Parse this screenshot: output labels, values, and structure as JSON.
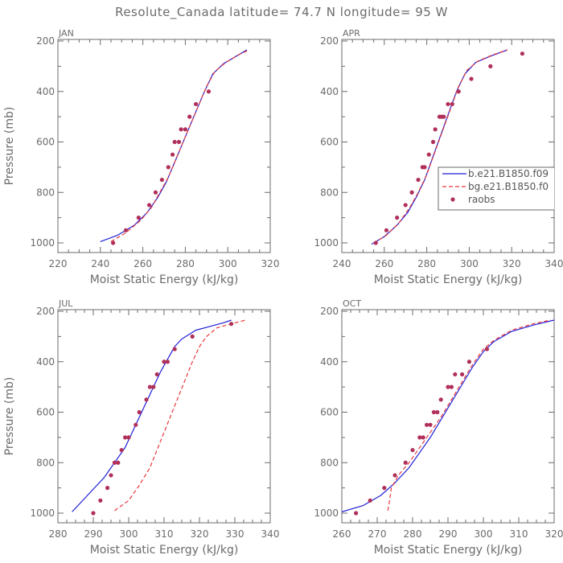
{
  "figure": {
    "title": "Resolute_Canada  latitude= 74.7 N longitude= 95 W",
    "xlabel": "Moist Static Energy (kJ/kg)",
    "ylabel": "Pressure (mb)"
  },
  "legend": {
    "entries": [
      "b.e21.B1850.f09",
      "bg.e21.B1850.f0",
      "raobs"
    ]
  },
  "colors": {
    "b": "#1f1fd6",
    "bg": "#e8383c",
    "raobs": "#b0305a",
    "axis": "#6b6b6b"
  },
  "chart_data": [
    {
      "type": "line",
      "panel": "JAN",
      "xlim": [
        220,
        320
      ],
      "ylim": [
        1000,
        200
      ],
      "y_reversed": true,
      "xticks": [
        220,
        240,
        260,
        280,
        300,
        320
      ],
      "yticks": [
        200,
        400,
        600,
        800,
        1000
      ],
      "series": [
        {
          "key": "b",
          "style": "solid",
          "x": [
            240,
            248,
            256,
            262,
            267,
            271,
            274,
            277,
            280,
            283,
            286,
            289,
            293,
            298,
            304,
            309
          ],
          "y": [
            995,
            970,
            930,
            880,
            820,
            760,
            700,
            640,
            580,
            520,
            460,
            400,
            330,
            290,
            260,
            235
          ]
        },
        {
          "key": "bg",
          "style": "dashed",
          "x": [
            245,
            252,
            259,
            264,
            268,
            272,
            275,
            278,
            281,
            284,
            287,
            290,
            294,
            299,
            305,
            310
          ],
          "y": [
            995,
            960,
            910,
            860,
            800,
            740,
            680,
            620,
            560,
            500,
            440,
            380,
            320,
            285,
            255,
            235
          ]
        },
        {
          "key": "raobs",
          "style": "points",
          "x": [
            246,
            252,
            258,
            263,
            266,
            269,
            272,
            274,
            275,
            277,
            278,
            280,
            282,
            285,
            291
          ],
          "y": [
            1000,
            950,
            900,
            850,
            800,
            750,
            700,
            650,
            600,
            600,
            550,
            550,
            500,
            450,
            400
          ]
        }
      ]
    },
    {
      "type": "line",
      "panel": "APR",
      "xlim": [
        240,
        340
      ],
      "ylim": [
        1000,
        200
      ],
      "y_reversed": true,
      "xticks": [
        240,
        260,
        280,
        300,
        320,
        340
      ],
      "yticks": [
        200,
        400,
        600,
        800,
        1000
      ],
      "series": [
        {
          "key": "b",
          "style": "solid",
          "x": [
            254,
            260,
            266,
            271,
            275,
            279,
            282,
            285,
            288,
            291,
            294,
            298,
            303,
            310,
            318
          ],
          "y": [
            1005,
            975,
            930,
            880,
            820,
            750,
            680,
            610,
            540,
            470,
            400,
            330,
            285,
            260,
            235
          ]
        },
        {
          "key": "bg",
          "style": "dashed",
          "x": [
            255,
            261,
            267,
            272,
            276,
            280,
            283,
            286,
            289,
            292,
            295,
            299,
            304,
            311,
            318
          ],
          "y": [
            1000,
            970,
            920,
            860,
            800,
            730,
            660,
            590,
            520,
            450,
            380,
            315,
            280,
            255,
            235
          ]
        },
        {
          "key": "raobs",
          "style": "points",
          "x": [
            256,
            261,
            266,
            270,
            273,
            276,
            278,
            279,
            281,
            283,
            284,
            286,
            287,
            288,
            290,
            292,
            295,
            301,
            310,
            325
          ],
          "y": [
            1000,
            950,
            900,
            850,
            800,
            750,
            700,
            700,
            650,
            600,
            550,
            500,
            500,
            500,
            450,
            450,
            400,
            350,
            300,
            250
          ]
        }
      ]
    },
    {
      "type": "line",
      "panel": "JUL",
      "xlim": [
        280,
        340
      ],
      "ylim": [
        1000,
        200
      ],
      "y_reversed": true,
      "xticks": [
        280,
        290,
        300,
        310,
        320,
        330,
        340
      ],
      "yticks": [
        200,
        400,
        600,
        800,
        1000
      ],
      "series": [
        {
          "key": "b",
          "style": "solid",
          "x": [
            284,
            289,
            293,
            296,
            299,
            301,
            303,
            305,
            307,
            309,
            311,
            313,
            315,
            319,
            323,
            327,
            329
          ],
          "y": [
            995,
            920,
            860,
            800,
            740,
            680,
            620,
            560,
            500,
            440,
            390,
            340,
            310,
            275,
            260,
            245,
            235
          ]
        },
        {
          "key": "bg",
          "style": "dashed",
          "x": [
            296,
            300,
            303,
            306,
            308,
            310,
            312,
            314,
            316,
            318,
            320,
            322,
            325,
            329,
            333
          ],
          "y": [
            990,
            950,
            890,
            820,
            750,
            680,
            610,
            540,
            470,
            400,
            340,
            300,
            265,
            250,
            235
          ]
        },
        {
          "key": "raobs",
          "style": "points",
          "x": [
            290,
            292,
            294,
            295,
            296,
            297,
            298,
            299,
            300,
            302,
            303,
            305,
            306,
            307,
            308,
            310,
            311,
            313,
            318,
            329
          ],
          "y": [
            1000,
            950,
            900,
            850,
            800,
            800,
            750,
            700,
            700,
            650,
            600,
            550,
            500,
            500,
            450,
            400,
            400,
            350,
            300,
            250
          ]
        }
      ]
    },
    {
      "type": "line",
      "panel": "OCT",
      "xlim": [
        260,
        320
      ],
      "ylim": [
        1000,
        200
      ],
      "y_reversed": true,
      "xticks": [
        260,
        270,
        280,
        290,
        300,
        310,
        320
      ],
      "yticks": [
        200,
        400,
        600,
        800,
        1000
      ],
      "series": [
        {
          "key": "b",
          "style": "solid",
          "x": [
            260,
            266,
            271,
            275,
            279,
            282,
            285,
            288,
            291,
            294,
            297,
            300,
            303,
            308,
            314,
            320
          ],
          "y": [
            995,
            970,
            930,
            880,
            820,
            760,
            700,
            630,
            560,
            490,
            420,
            360,
            320,
            280,
            255,
            235
          ]
        },
        {
          "key": "bg",
          "style": "dashed",
          "x": [
            273,
            273.5,
            274,
            276,
            279,
            282,
            285,
            288,
            291,
            294,
            297,
            300,
            303,
            308,
            314,
            319
          ],
          "y": [
            990,
            950,
            900,
            850,
            800,
            740,
            680,
            620,
            550,
            480,
            410,
            350,
            315,
            275,
            250,
            235
          ]
        },
        {
          "key": "raobs",
          "style": "points",
          "x": [
            264,
            268,
            272,
            275,
            278,
            280,
            282,
            283,
            284,
            285,
            286,
            287,
            288,
            290,
            291,
            292,
            294,
            296,
            301
          ],
          "y": [
            1000,
            950,
            900,
            850,
            800,
            750,
            700,
            700,
            650,
            650,
            600,
            600,
            550,
            500,
            500,
            450,
            450,
            400,
            350
          ]
        }
      ]
    }
  ]
}
